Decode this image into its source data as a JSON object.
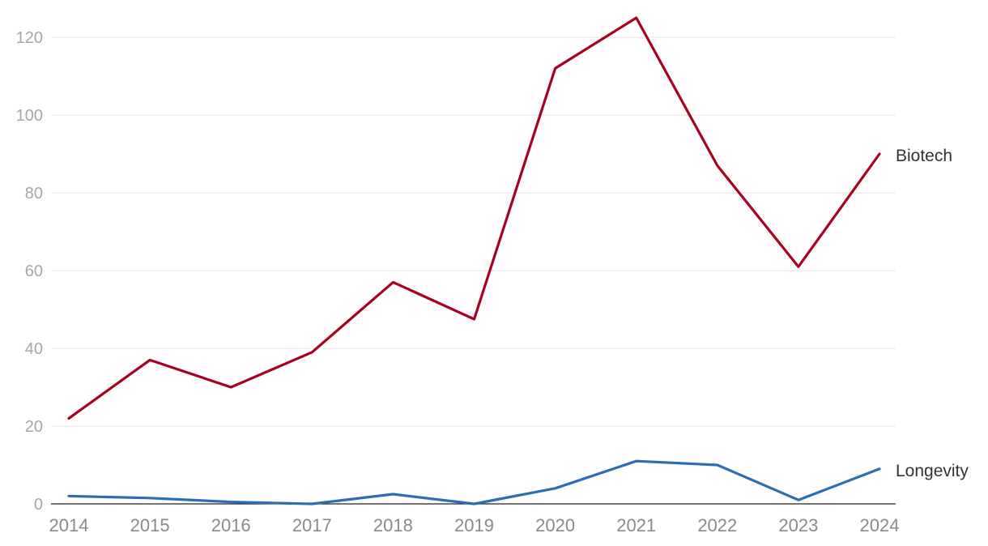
{
  "chart_data": {
    "type": "line",
    "title": "",
    "xlabel": "",
    "ylabel": "",
    "x": [
      "2014",
      "2015",
      "2016",
      "2017",
      "2018",
      "2019",
      "2020",
      "2021",
      "2022",
      "2023",
      "2024"
    ],
    "ylim": [
      0,
      125
    ],
    "yticks": [
      0,
      20,
      40,
      60,
      80,
      100,
      120
    ],
    "grid": true,
    "legend": "inline-right",
    "series": [
      {
        "name": "Biotech",
        "color": "#a8001e",
        "values": [
          22,
          37,
          30,
          39,
          57,
          47.5,
          112,
          125,
          87,
          61,
          90
        ]
      },
      {
        "name": "Longevity",
        "color": "#2a6fb5",
        "values": [
          2,
          1.5,
          0.5,
          0,
          2.5,
          0,
          4,
          11,
          10,
          1,
          9
        ]
      }
    ]
  }
}
